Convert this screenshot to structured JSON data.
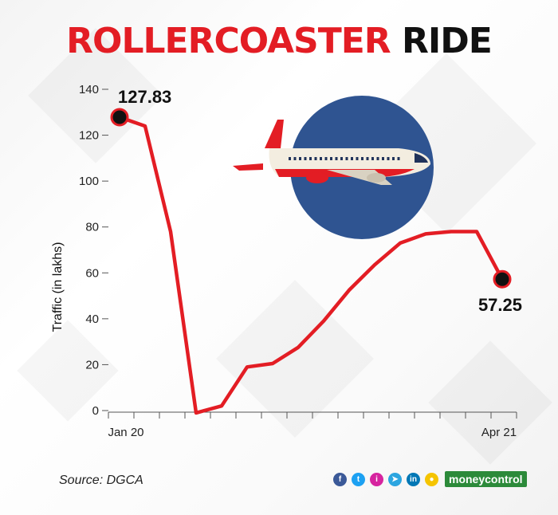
{
  "title_part1": "ROLLERCOASTER",
  "title_part2": "RIDE",
  "source_text": "Source: DGCA",
  "brand_text": "moneycontrol",
  "social_icons": [
    "facebook-icon",
    "twitter-icon",
    "instagram-icon",
    "telegram-icon",
    "linkedin-icon",
    "koo-icon"
  ],
  "colors": {
    "title_red": "#e31d24",
    "line": "#e31d24",
    "marker": "#111111",
    "plane_circle": "#2f5491"
  },
  "chart_data": {
    "type": "line",
    "ylabel": "Traffic (in lakhs)",
    "ylim": [
      0,
      140
    ],
    "yticks": [
      0,
      20,
      40,
      60,
      80,
      100,
      120,
      140
    ],
    "x_labels": [
      "Jan 20",
      "Apr 21"
    ],
    "grid": false,
    "series": [
      {
        "values": [
          127.83,
          124,
          78,
          -1,
          2,
          19,
          20.5,
          27.5,
          39,
          52.5,
          63.5,
          73,
          77,
          78,
          78,
          57.25
        ]
      }
    ],
    "annotations": [
      {
        "index": 0,
        "text": "127.83"
      },
      {
        "index": 15,
        "text": "57.25"
      }
    ]
  }
}
